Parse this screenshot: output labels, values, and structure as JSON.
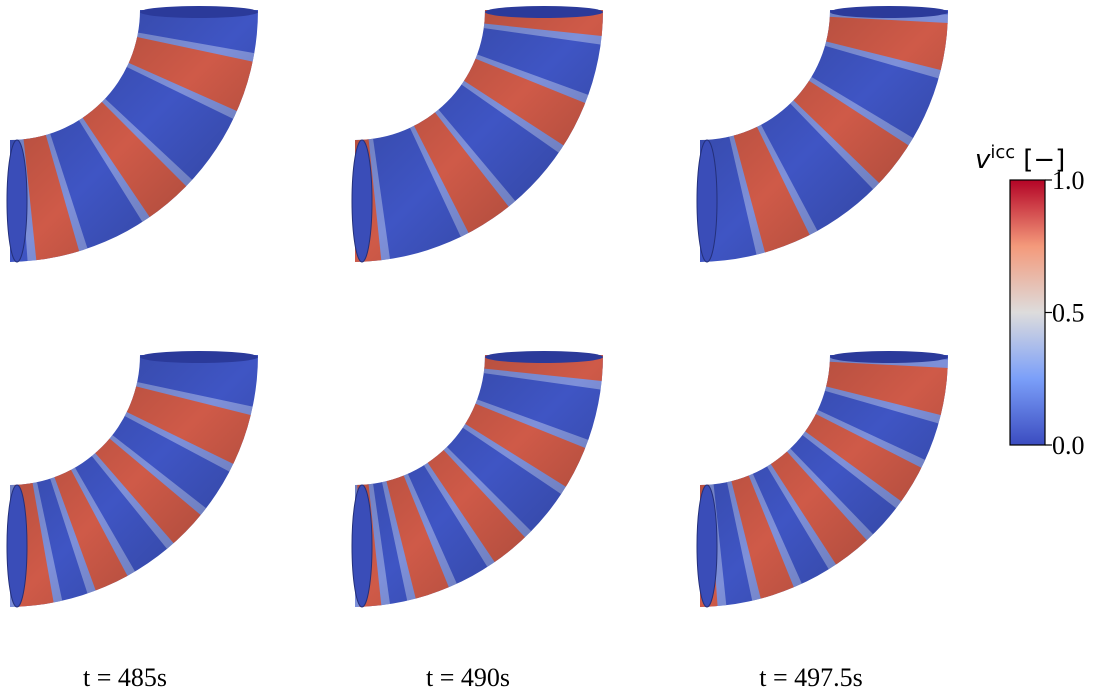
{
  "colorbar": {
    "symbol": "v",
    "superscript": "icc",
    "unit": "[−]",
    "lim": [
      0,
      1
    ],
    "ticks": [
      {
        "value": 0,
        "label": "0.0"
      },
      {
        "value": 0.5,
        "label": "0.5"
      },
      {
        "value": 1,
        "label": "1.0"
      }
    ]
  },
  "columns": [
    {
      "label": "t = 485s"
    },
    {
      "label": "t = 490s"
    },
    {
      "label": "t = 497.5s"
    }
  ]
}
